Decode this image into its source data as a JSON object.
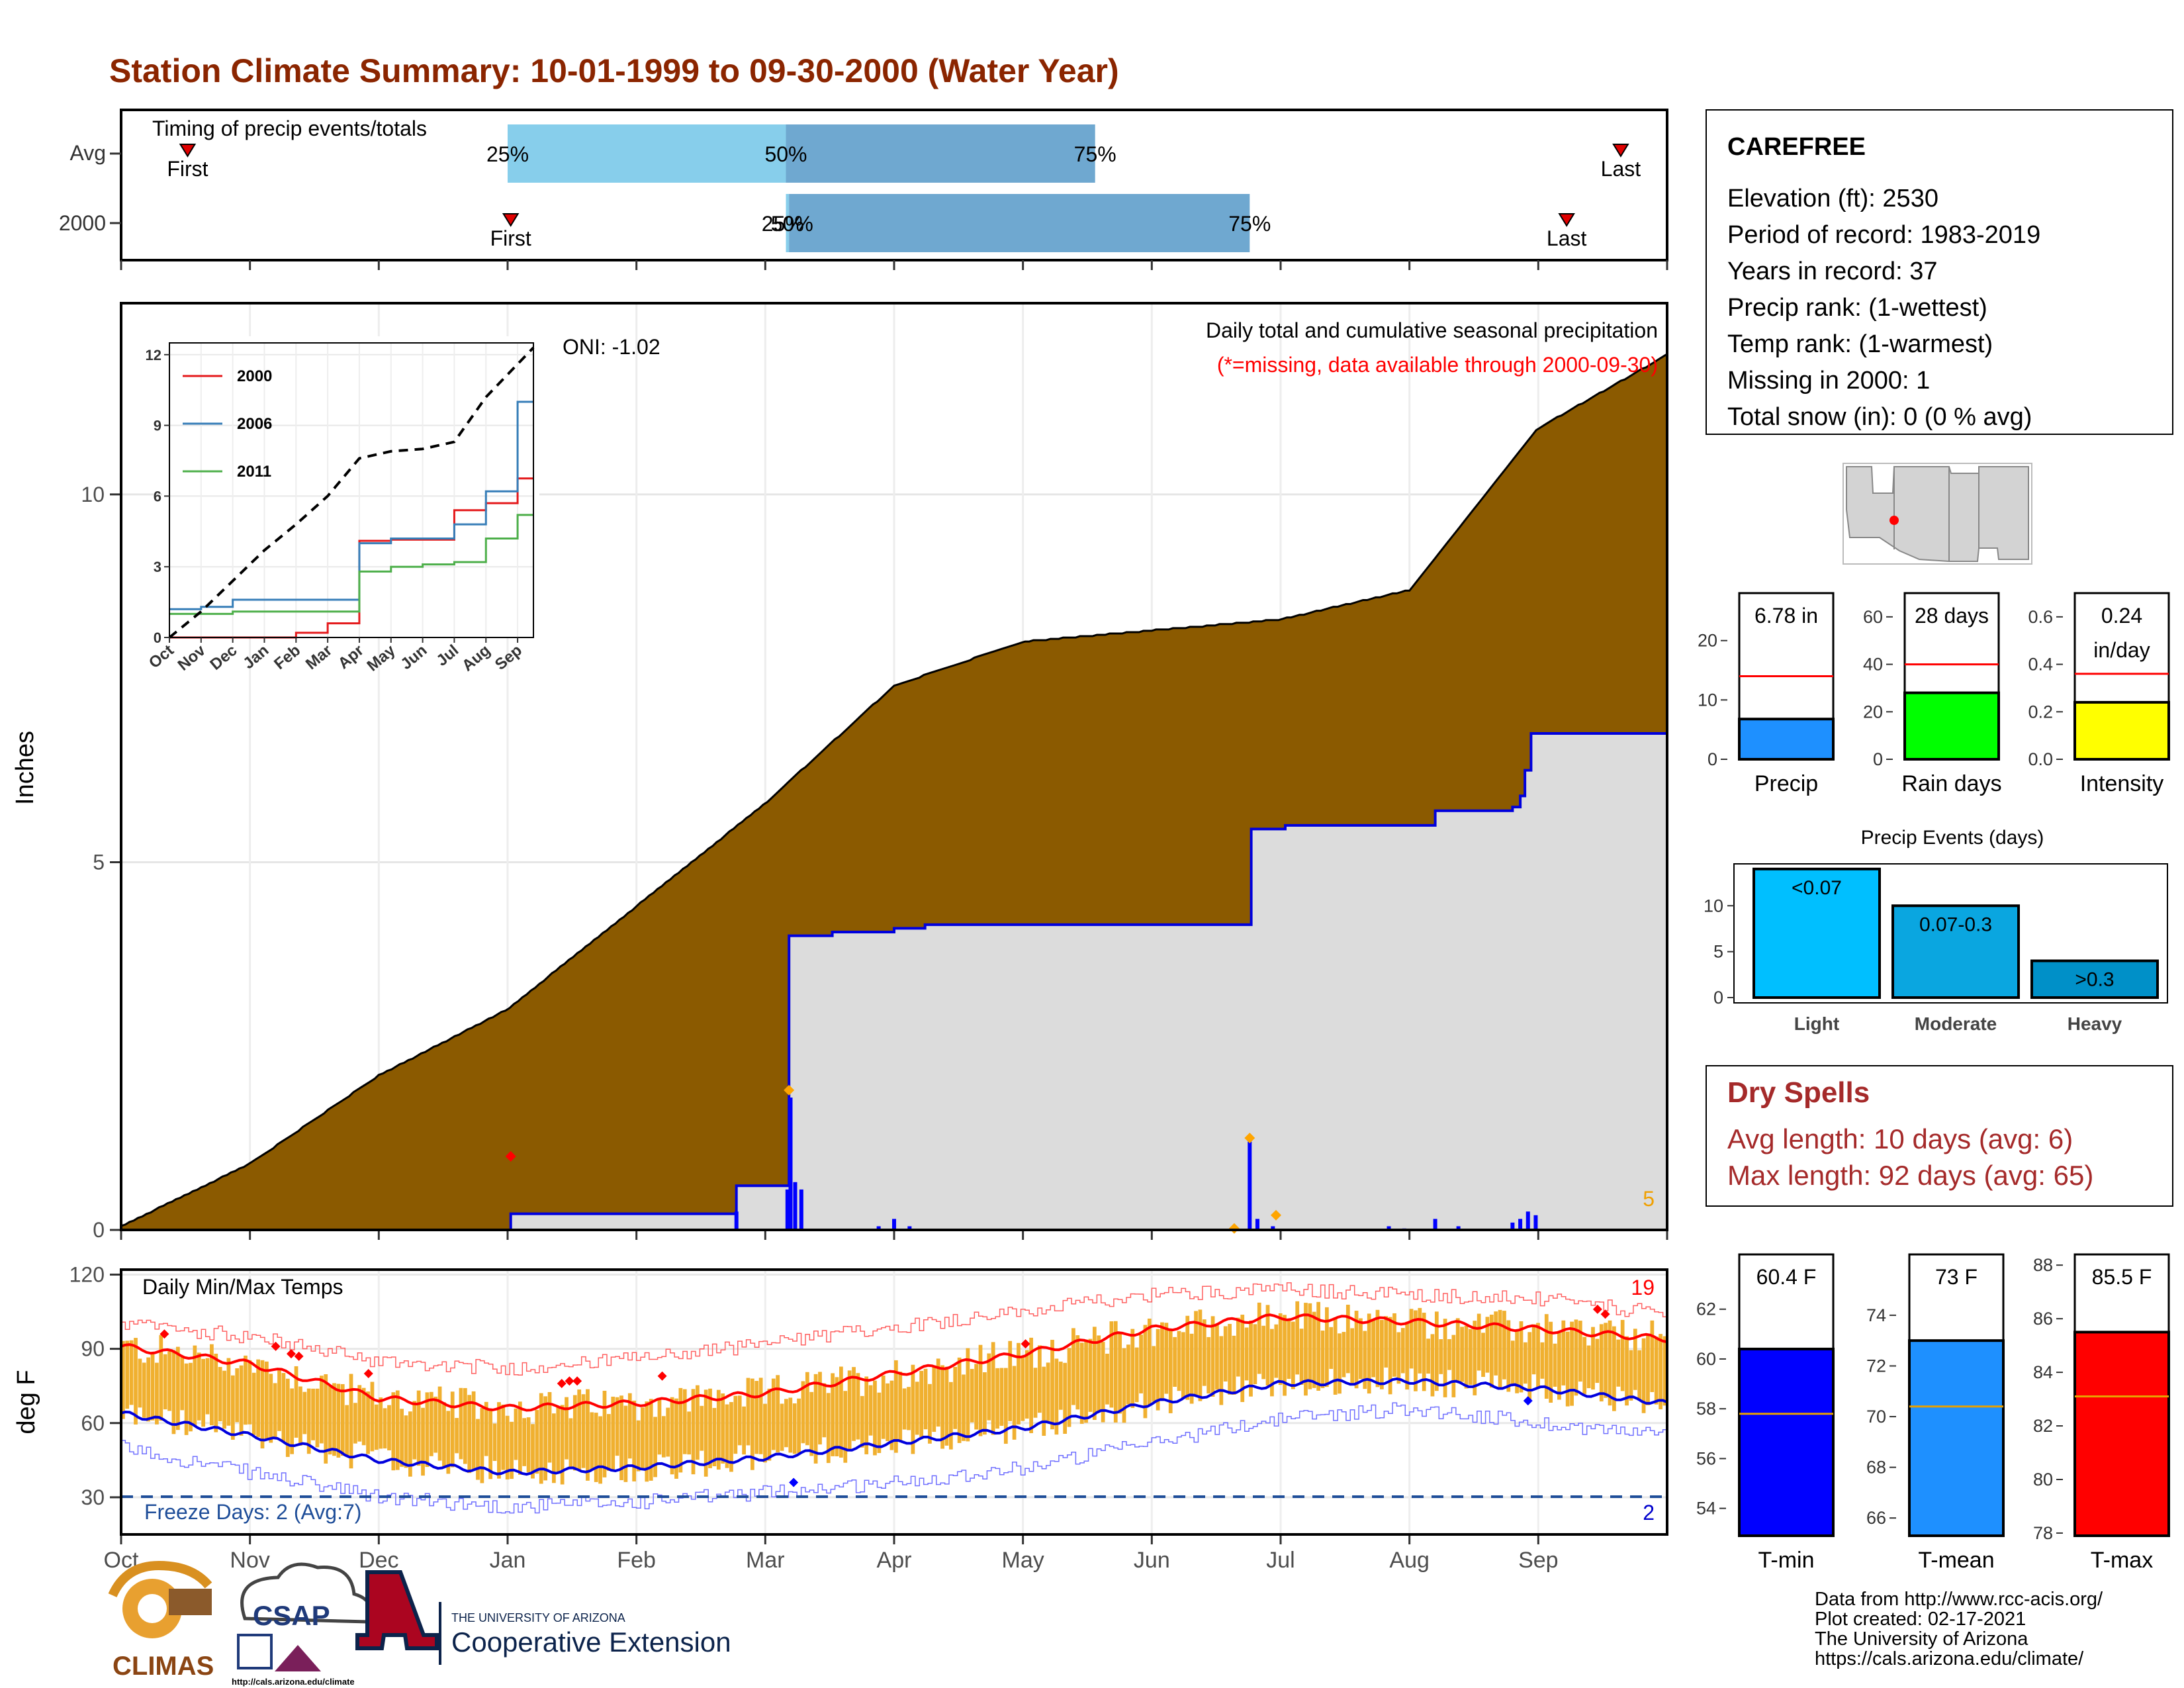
{
  "title": "Station Climate Summary: 10-01-1999 to 09-30-2000 (Water Year)",
  "colors": {
    "title": "#8B2500",
    "brown": "#8B5A00",
    "lightblue": "#87CEEB",
    "midblue": "#6FA8D0",
    "orange": "#F0B030",
    "red": "#FF0000",
    "blue": "#0000FF",
    "darkred": "#A52A2A"
  },
  "months": [
    "Oct",
    "Nov",
    "Dec",
    "Jan",
    "Feb",
    "Mar",
    "Apr",
    "May",
    "Jun",
    "Jul",
    "Aug",
    "Sep"
  ],
  "timing": {
    "label": "Timing of precip events/totals",
    "rows": [
      "Avg",
      "2000"
    ],
    "avg_first": 0.043,
    "avg_last": 0.97,
    "avg_p25": 0.25,
    "avg_p50": 0.43,
    "avg_p75": 0.63,
    "yr_first": 0.252,
    "yr_last": 0.935,
    "yr_p25": 0.43,
    "yr_p50": 0.432,
    "yr_p75": 0.73,
    "lab_first": "First",
    "lab_last": "Last",
    "lab_25": "25%",
    "lab_50": "50%",
    "lab_75": "75%"
  },
  "precip": {
    "ylabel": "Inches",
    "yticks": [
      "0",
      "5",
      "10"
    ],
    "ymax": 12.6,
    "caption1": "Daily total and cumulative seasonal precipitation",
    "caption2": "(*=missing, data available through 2000-09-30)",
    "oni": "ONI: -1.02",
    "missing_count": "5"
  },
  "chart_data": [
    {
      "type": "area",
      "title": "Daily total and cumulative seasonal precipitation",
      "ylabel": "Inches",
      "ylim": [
        0,
        12.6
      ],
      "x": [
        "Oct",
        "Nov",
        "Dec",
        "Jan",
        "Feb",
        "Mar",
        "Apr",
        "May",
        "Jun",
        "Jul",
        "Aug",
        "Sep",
        "end"
      ],
      "series": [
        {
          "values": [
            0.05,
            0.9,
            2.1,
            3.0,
            4.4,
            5.8,
            7.4,
            8.0,
            8.15,
            8.3,
            8.7,
            10.9,
            11.9
          ]
        },
        {
          "values": [
            0,
            0,
            0,
            0.2,
            0.2,
            0.6,
            4.1,
            4.15,
            4.15,
            5.4,
            5.7,
            6.7,
            6.75
          ]
        }
      ]
    },
    {
      "type": "line",
      "xlabel": "",
      "x": [
        "Oct",
        "Nov",
        "Dec",
        "Jan",
        "Feb",
        "Mar",
        "Apr",
        "May",
        "Jun",
        "Jul",
        "Aug",
        "Sep"
      ],
      "ylim": [
        0,
        12
      ],
      "yticks": [
        "0",
        "3",
        "6",
        "9",
        "12"
      ],
      "series": [
        {
          "name": "2000",
          "color": "#E41A1C",
          "values": [
            0,
            0,
            0,
            0,
            0.2,
            0.6,
            4.1,
            4.15,
            4.15,
            5.4,
            5.7,
            6.75
          ]
        },
        {
          "name": "2006",
          "color": "#377EB8",
          "values": [
            1.2,
            1.3,
            1.6,
            1.6,
            1.6,
            1.6,
            4.0,
            4.2,
            4.2,
            4.8,
            6.2,
            10.0
          ]
        },
        {
          "name": "2011",
          "color": "#4DAF4A",
          "values": [
            1.0,
            1.0,
            1.1,
            1.1,
            1.1,
            1.1,
            2.8,
            3.0,
            3.1,
            3.2,
            4.2,
            5.2
          ]
        }
      ],
      "avg": [
        0,
        1.1,
        2.4,
        3.7,
        4.8,
        6.0,
        7.6,
        7.9,
        8.0,
        8.3,
        10.2,
        11.6
      ]
    },
    {
      "type": "bar",
      "title": "Daily Min/Max Temps",
      "ylabel": "deg F",
      "ylim": [
        15,
        122
      ],
      "yticks": [
        "30",
        "60",
        "90",
        "120"
      ],
      "x": [
        "Oct",
        "Nov",
        "Dec",
        "Jan",
        "Feb",
        "Mar",
        "Apr",
        "May",
        "Jun",
        "Jul",
        "Aug",
        "Sep",
        "end"
      ],
      "avg_max": [
        91,
        84,
        70,
        66,
        68,
        72,
        80,
        88,
        98,
        103,
        101,
        98,
        94
      ],
      "avg_min": [
        64,
        55,
        45,
        40,
        42,
        46,
        52,
        58,
        68,
        76,
        77,
        74,
        68
      ],
      "rec_max": [
        100,
        95,
        85,
        82,
        86,
        92,
        99,
        105,
        112,
        114,
        112,
        110,
        104
      ],
      "rec_min": [
        50,
        40,
        30,
        26,
        28,
        32,
        36,
        42,
        52,
        62,
        66,
        60,
        55
      ]
    },
    {
      "type": "bar",
      "categories": [
        "Precip"
      ],
      "values": [
        6.78
      ],
      "avg": 14.0,
      "ylim": [
        0,
        28
      ],
      "label": "6.78 in"
    },
    {
      "type": "bar",
      "categories": [
        "Rain days"
      ],
      "values": [
        28
      ],
      "avg": 40,
      "ylim": [
        0,
        70
      ],
      "label": "28 days"
    },
    {
      "type": "bar",
      "categories": [
        "Intensity"
      ],
      "values": [
        0.24
      ],
      "avg": 0.36,
      "ylim": [
        0,
        0.7
      ]
    },
    {
      "type": "bar",
      "title": "Precip Events (days)",
      "categories": [
        "Light",
        "Moderate",
        "Heavy"
      ],
      "values": [
        14,
        10,
        4
      ],
      "ylim": [
        0,
        14.2
      ]
    },
    {
      "type": "bar",
      "categories": [
        "T-min"
      ],
      "values": [
        60.4
      ],
      "avg": 57.8,
      "ylim": [
        52.9,
        64.2
      ],
      "label": "60.4 F"
    },
    {
      "type": "bar",
      "categories": [
        "T-mean"
      ],
      "values": [
        73
      ],
      "avg": 70.4,
      "ylim": [
        65.3,
        76.4
      ],
      "label": "73 F"
    },
    {
      "type": "bar",
      "categories": [
        "T-max"
      ],
      "values": [
        85.5
      ],
      "avg": 83.1,
      "ylim": [
        77.9,
        88.4
      ],
      "label": "85.5 F"
    }
  ],
  "temps": {
    "label": "Daily Min/Max Temps",
    "freeze": "Freeze Days: 2 (Avg:7)",
    "freeze_line": 32,
    "count_hot": "19",
    "count_cold": "2"
  },
  "inset": {
    "legend": [
      "2000",
      "2006",
      "2011"
    ]
  },
  "station": {
    "name": "CAREFREE",
    "lines": [
      "Elevation (ft): 2530",
      "Period of record: 1983-2019",
      "Years in record: 37",
      "Precip rank:  (1-wettest)",
      "Temp rank:  (1-warmest)",
      "Missing in 2000: 1",
      "Total snow (in): 0 (0 % avg)"
    ]
  },
  "small_bars": {
    "precip": {
      "label": "6.78 in",
      "name": "Precip",
      "ticks": [
        "0",
        "10",
        "20"
      ]
    },
    "raindays": {
      "label": "28 days",
      "name": "Rain days",
      "ticks": [
        "0",
        "20",
        "40",
        "60"
      ]
    },
    "intensity": {
      "label1": "0.24",
      "label2": "in/day",
      "name": "Intensity",
      "ticks": [
        "0.0",
        "0.2",
        "0.4",
        "0.6"
      ]
    }
  },
  "events": {
    "title": "Precip Events (days)",
    "cats": [
      "Light",
      "Moderate",
      "Heavy"
    ],
    "labels": [
      "<0.07",
      "0.07-0.3",
      ">0.3"
    ],
    "ticks": [
      "0",
      "5",
      "10"
    ]
  },
  "dry": {
    "title": "Dry Spells",
    "avg": "Avg length: 10 days (avg: 6)",
    "max": "Max length: 92 days (avg: 65)"
  },
  "tbars": {
    "tmin": {
      "label": "60.4 F",
      "name": "T-min",
      "ticks": [
        "54",
        "56",
        "58",
        "60",
        "62"
      ]
    },
    "tmean": {
      "label": "73 F",
      "name": "T-mean",
      "ticks": [
        "66",
        "68",
        "70",
        "72",
        "74"
      ]
    },
    "tmax": {
      "label": "85.5 F",
      "name": "T-max",
      "ticks": [
        "78",
        "80",
        "82",
        "84",
        "86",
        "88"
      ]
    }
  },
  "footer": {
    "lines": [
      "Data from http://www.rcc-acis.org/",
      "Plot created: 02-17-2021",
      "The University of Arizona",
      "https://cals.arizona.edu/climate/"
    ],
    "climas": "CLIMAS",
    "csap": "CSAP",
    "csap_url": "http://cals.arizona.edu/climate",
    "ua_small": "THE UNIVERSITY OF ARIZONA",
    "ua_big": "Cooperative Extension"
  }
}
